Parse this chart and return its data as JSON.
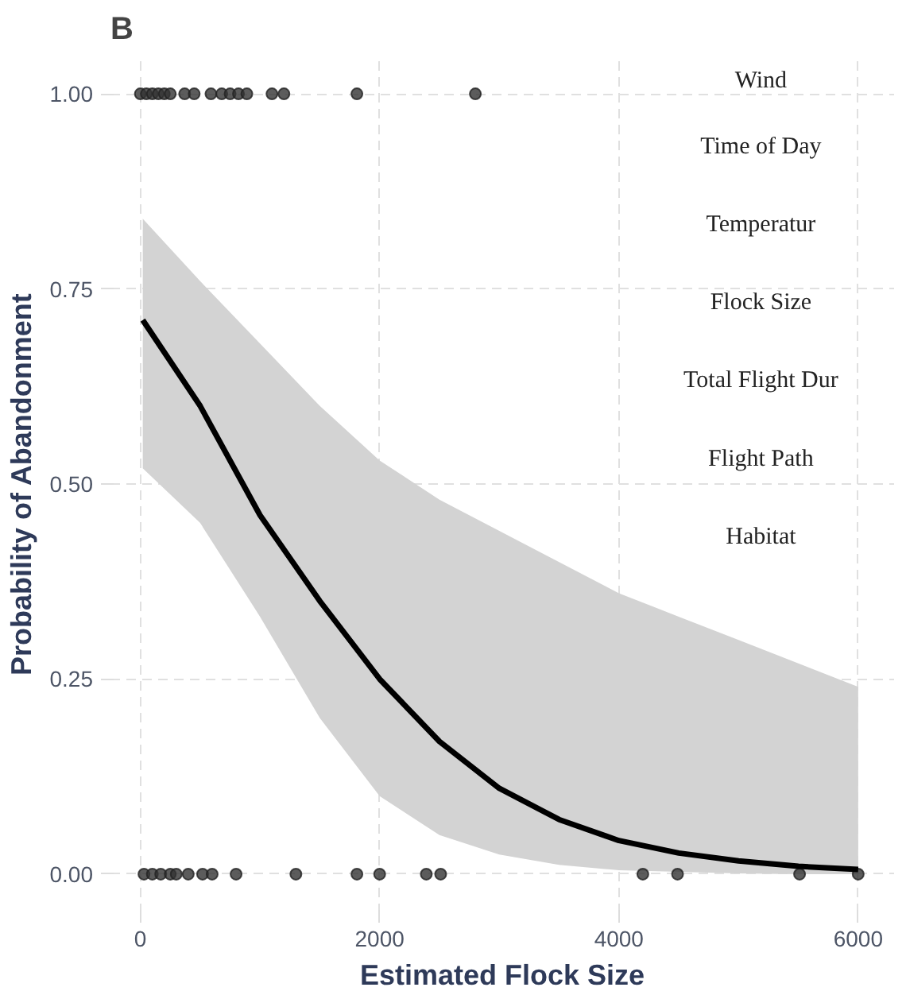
{
  "chart_data": [
    {
      "type": "scatter",
      "title": "B",
      "xlabel": "Estimated Flock Size",
      "ylabel": "Probability of Abandonment",
      "xlim": [
        -250,
        6300
      ],
      "ylim": [
        -0.05,
        1.05
      ],
      "xticks": [
        0,
        2000,
        4000,
        6000
      ],
      "yticks": [
        {
          "value": 0,
          "label": "0.00"
        },
        {
          "value": 0.25,
          "label": "0.25"
        },
        {
          "value": 0.5,
          "label": "0.50"
        },
        {
          "value": 0.75,
          "label": "0.75"
        },
        {
          "value": 1,
          "label": "1.00"
        }
      ],
      "grid": true,
      "series": [
        {
          "type": "scatter",
          "marker": "circle",
          "color": "#333333",
          "x": [
            0,
            50,
            100,
            150,
            200,
            250,
            370,
            450,
            590,
            680,
            750,
            820,
            890,
            1100,
            1200,
            1810,
            2800,
            30,
            100,
            170,
            250,
            300,
            400,
            520,
            600,
            800,
            1300,
            1810,
            2000,
            2390,
            2510,
            4200,
            4490,
            5510,
            6000
          ],
          "values": [
            1,
            1,
            1,
            1,
            1,
            1,
            1,
            1,
            1,
            1,
            1,
            1,
            1,
            1,
            1,
            1,
            1,
            0,
            0,
            0,
            0,
            0,
            0,
            0,
            0,
            0,
            0,
            0,
            0,
            0,
            0,
            0,
            0,
            0,
            0
          ]
        },
        {
          "type": "line",
          "color": "#000000",
          "x": [
            20,
            500,
            1000,
            1500,
            2000,
            2500,
            3000,
            3500,
            4000,
            4500,
            5000,
            5500,
            6000
          ],
          "values": [
            0.71,
            0.6,
            0.46,
            0.35,
            0.25,
            0.17,
            0.11,
            0.07,
            0.043,
            0.027,
            0.017,
            0.01,
            0.006
          ],
          "upper": [
            0.84,
            0.76,
            0.68,
            0.6,
            0.53,
            0.48,
            0.44,
            0.4,
            0.36,
            0.33,
            0.3,
            0.27,
            0.24
          ],
          "lower": [
            0.52,
            0.45,
            0.33,
            0.2,
            0.1,
            0.05,
            0.025,
            0.012,
            0.005,
            0.003,
            0.001,
            0,
            0
          ]
        }
      ]
    },
    {
      "type": "other",
      "annotations": [
        "Wind",
        "Time of Day",
        "Temperatur",
        "Flock Size",
        "Total Flight Dur",
        "Flight Path",
        "Habitat"
      ]
    }
  ]
}
